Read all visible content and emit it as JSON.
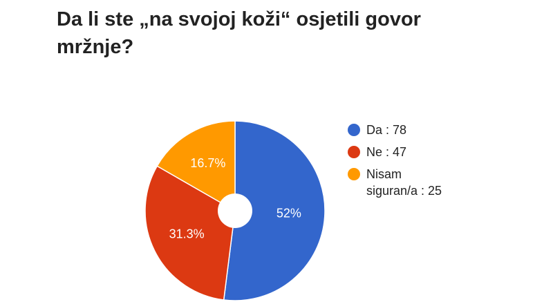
{
  "chart_data": {
    "type": "pie",
    "title": "Da li ste „na svojoj koži“ osjetili govor mržnje?",
    "categories": [
      "Da : 78",
      "Ne : 47",
      "Nisam siguran/a : 25"
    ],
    "values": [
      52,
      31.3,
      16.7
    ],
    "value_labels": [
      "52%",
      "31.3%",
      "16.7%"
    ],
    "colors": [
      "#3366cc",
      "#dc3912",
      "#ff9900"
    ],
    "legend": "right"
  }
}
